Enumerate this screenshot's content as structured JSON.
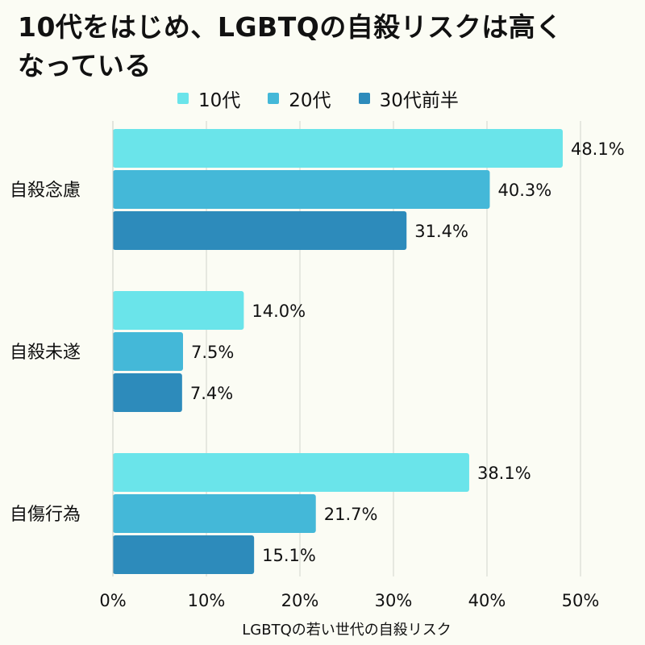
{
  "chart_data": {
    "type": "bar",
    "orientation": "horizontal",
    "title": "10代をはじめ、LGBTQの自殺リスクは高くなっている",
    "title_lines": [
      "10代をはじめ、LGBTQの自殺リスクは高く",
      "なっている"
    ],
    "xlabel": "LGBTQの若い世代の自殺リスク",
    "ylabel": "",
    "categories": [
      "自殺念慮",
      "自殺未遂",
      "自傷行為"
    ],
    "series": [
      {
        "name": "10代",
        "color": "#6ae4ea",
        "values": [
          48.1,
          14.0,
          38.1
        ],
        "labels": [
          "48.1%",
          "14.0%",
          "38.1%"
        ]
      },
      {
        "name": "20代",
        "color": "#44b8d8",
        "values": [
          40.3,
          7.5,
          21.7
        ],
        "labels": [
          "40.3%",
          "7.5%",
          "21.7%"
        ]
      },
      {
        "name": "30代前半",
        "color": "#2d8bbb",
        "values": [
          31.4,
          7.4,
          15.1
        ],
        "labels": [
          "31.4%",
          "7.4%",
          "15.1%"
        ]
      }
    ],
    "xlim": [
      0,
      50
    ],
    "xticks": [
      "0%",
      "10%",
      "20%",
      "30%",
      "40%",
      "50%"
    ],
    "grid": true,
    "legend_position": "top"
  }
}
